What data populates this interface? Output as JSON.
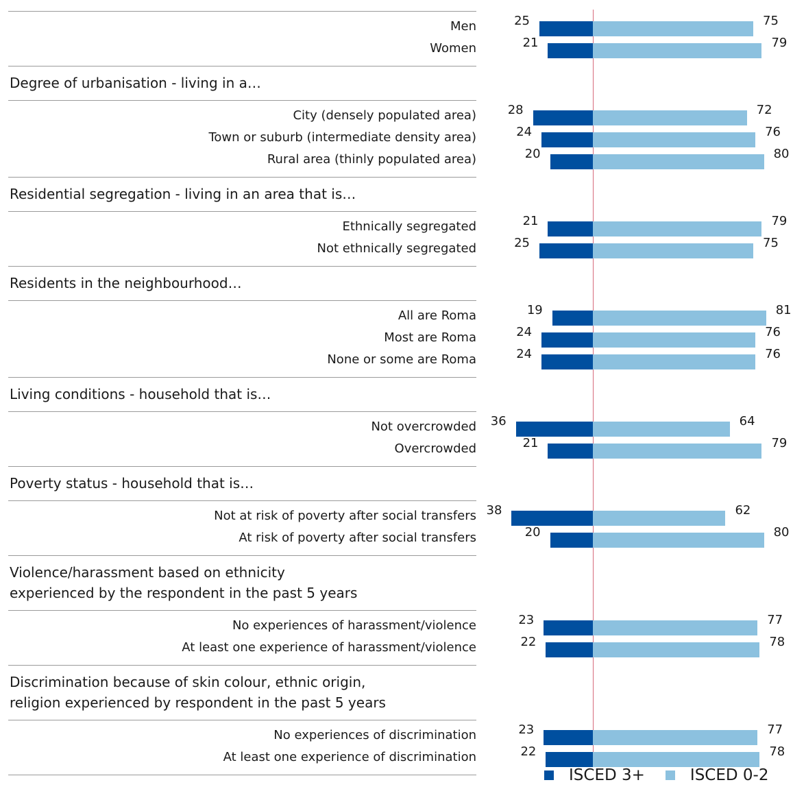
{
  "chart_data": {
    "type": "bar",
    "orientation": "horizontal",
    "stacked": true,
    "xlim": [
      0,
      100
    ],
    "series": [
      {
        "name": "ISCED 3+",
        "color": "#004f9f"
      },
      {
        "name": "ISCED 0-2",
        "color": "#8cc1df"
      }
    ],
    "groups": [
      {
        "heading": "",
        "rows": [
          {
            "label": "Men",
            "isced3plus": 25,
            "isced02": 75
          },
          {
            "label": "Women",
            "isced3plus": 21,
            "isced02": 79
          }
        ]
      },
      {
        "heading": "Degree of urbanisation - living in a…",
        "rows": [
          {
            "label": "City (densely populated area)",
            "isced3plus": 28,
            "isced02": 72
          },
          {
            "label": "Town or suburb (intermediate density area)",
            "isced3plus": 24,
            "isced02": 76
          },
          {
            "label": "Rural area (thinly populated area)",
            "isced3plus": 20,
            "isced02": 80
          }
        ]
      },
      {
        "heading": "Residential segregation  - living in an area that is…",
        "rows": [
          {
            "label": "Ethnically segregated",
            "isced3plus": 21,
            "isced02": 79
          },
          {
            "label": "Not ethnically segregated",
            "isced3plus": 25,
            "isced02": 75
          }
        ]
      },
      {
        "heading": "Residents in the neighbourhood…",
        "rows": [
          {
            "label": "All are Roma",
            "isced3plus": 19,
            "isced02": 81
          },
          {
            "label": "Most are Roma",
            "isced3plus": 24,
            "isced02": 76
          },
          {
            "label": "None or some are Roma",
            "isced3plus": 24,
            "isced02": 76
          }
        ]
      },
      {
        "heading": "Living conditions  - household that is…",
        "rows": [
          {
            "label": "Not overcrowded",
            "isced3plus": 36,
            "isced02": 64
          },
          {
            "label": "Overcrowded",
            "isced3plus": 21,
            "isced02": 79
          }
        ]
      },
      {
        "heading": "Poverty status  - household that is…",
        "rows": [
          {
            "label": "Not at risk of poverty after social transfers",
            "isced3plus": 38,
            "isced02": 62
          },
          {
            "label": "At risk of poverty after social transfers",
            "isced3plus": 20,
            "isced02": 80
          }
        ]
      },
      {
        "heading": "Violence/harassment based on ethnicity\nexperienced by the respondent in the past 5 years",
        "rows": [
          {
            "label": "No experiences of harassment/violence",
            "isced3plus": 23,
            "isced02": 77
          },
          {
            "label": "At least one experience of harassment/violence",
            "isced3plus": 22,
            "isced02": 78
          }
        ]
      },
      {
        "heading": "Discrimination because of skin colour, ethnic origin,\nreligion experienced by respondent in the past 5 years",
        "rows": [
          {
            "label": "No experiences of discrimination",
            "isced3plus": 23,
            "isced02": 77
          },
          {
            "label": "At least one experience of discrimination",
            "isced3plus": 22,
            "isced02": 78
          }
        ]
      }
    ]
  }
}
